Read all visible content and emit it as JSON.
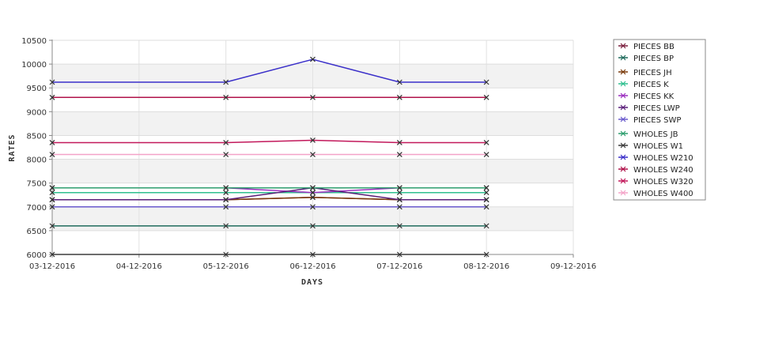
{
  "chart_data": {
    "type": "line",
    "xlabel": "DAYS",
    "ylabel": "RATES",
    "x_ticks": [
      "03-12-2016",
      "04-12-2016",
      "05-12-2016",
      "06-12-2016",
      "07-12-2016",
      "08-12-2016",
      "09-12-2016"
    ],
    "y_ticks": [
      6000,
      6500,
      7000,
      7500,
      8000,
      8500,
      9000,
      9500,
      10000,
      10500
    ],
    "ylim": [
      6000,
      10500
    ],
    "xlim": [
      "03-12-2016",
      "09-12-2016"
    ],
    "grid": true,
    "legend_position": "right",
    "x": [
      "03-12-2016",
      "05-12-2016",
      "06-12-2016",
      "07-12-2016",
      "08-12-2016"
    ],
    "series": [
      {
        "name": "PIECES BB",
        "color": "#7a1f3d",
        "values": [
          7150,
          7150,
          7200,
          7150,
          7150
        ]
      },
      {
        "name": "PIECES BP",
        "color": "#1f6b5c",
        "values": [
          6600,
          6600,
          6600,
          6600,
          6600
        ]
      },
      {
        "name": "PIECES JH",
        "color": "#7a3b0c",
        "values": [
          7150,
          7150,
          7200,
          7150,
          7150
        ]
      },
      {
        "name": "PIECES K",
        "color": "#2fbf8f",
        "values": [
          7300,
          7300,
          7300,
          7300,
          7300
        ]
      },
      {
        "name": "PIECES KK",
        "color": "#9b2fbf",
        "values": [
          7400,
          7400,
          7300,
          7400,
          7400
        ]
      },
      {
        "name": "PIECES LWP",
        "color": "#5a1f7a",
        "values": [
          7150,
          7150,
          7400,
          7150,
          7150
        ]
      },
      {
        "name": "PIECES SWP",
        "color": "#6a5acd",
        "values": [
          7000,
          7000,
          7000,
          7000,
          7000
        ]
      },
      {
        "name": "WHOLES JB",
        "color": "#2e9e6e",
        "values": [
          7400,
          7400,
          7400,
          7400,
          7400
        ]
      },
      {
        "name": "WHOLES W1",
        "color": "#3b3b3b",
        "values": [
          6000,
          6000,
          6000,
          6000,
          6000
        ]
      },
      {
        "name": "WHOLES W210",
        "color": "#3a2fc9",
        "values": [
          9620,
          9620,
          10100,
          9620,
          9620
        ]
      },
      {
        "name": "WHOLES W240",
        "color": "#b0124a",
        "values": [
          9300,
          9300,
          9300,
          9300,
          9300
        ]
      },
      {
        "name": "WHOLES W320",
        "color": "#c2185b",
        "values": [
          8350,
          8350,
          8400,
          8350,
          8350
        ]
      },
      {
        "name": "WHOLES W400",
        "color": "#f4a3c8",
        "values": [
          8100,
          8100,
          8100,
          8100,
          8100
        ]
      }
    ]
  }
}
